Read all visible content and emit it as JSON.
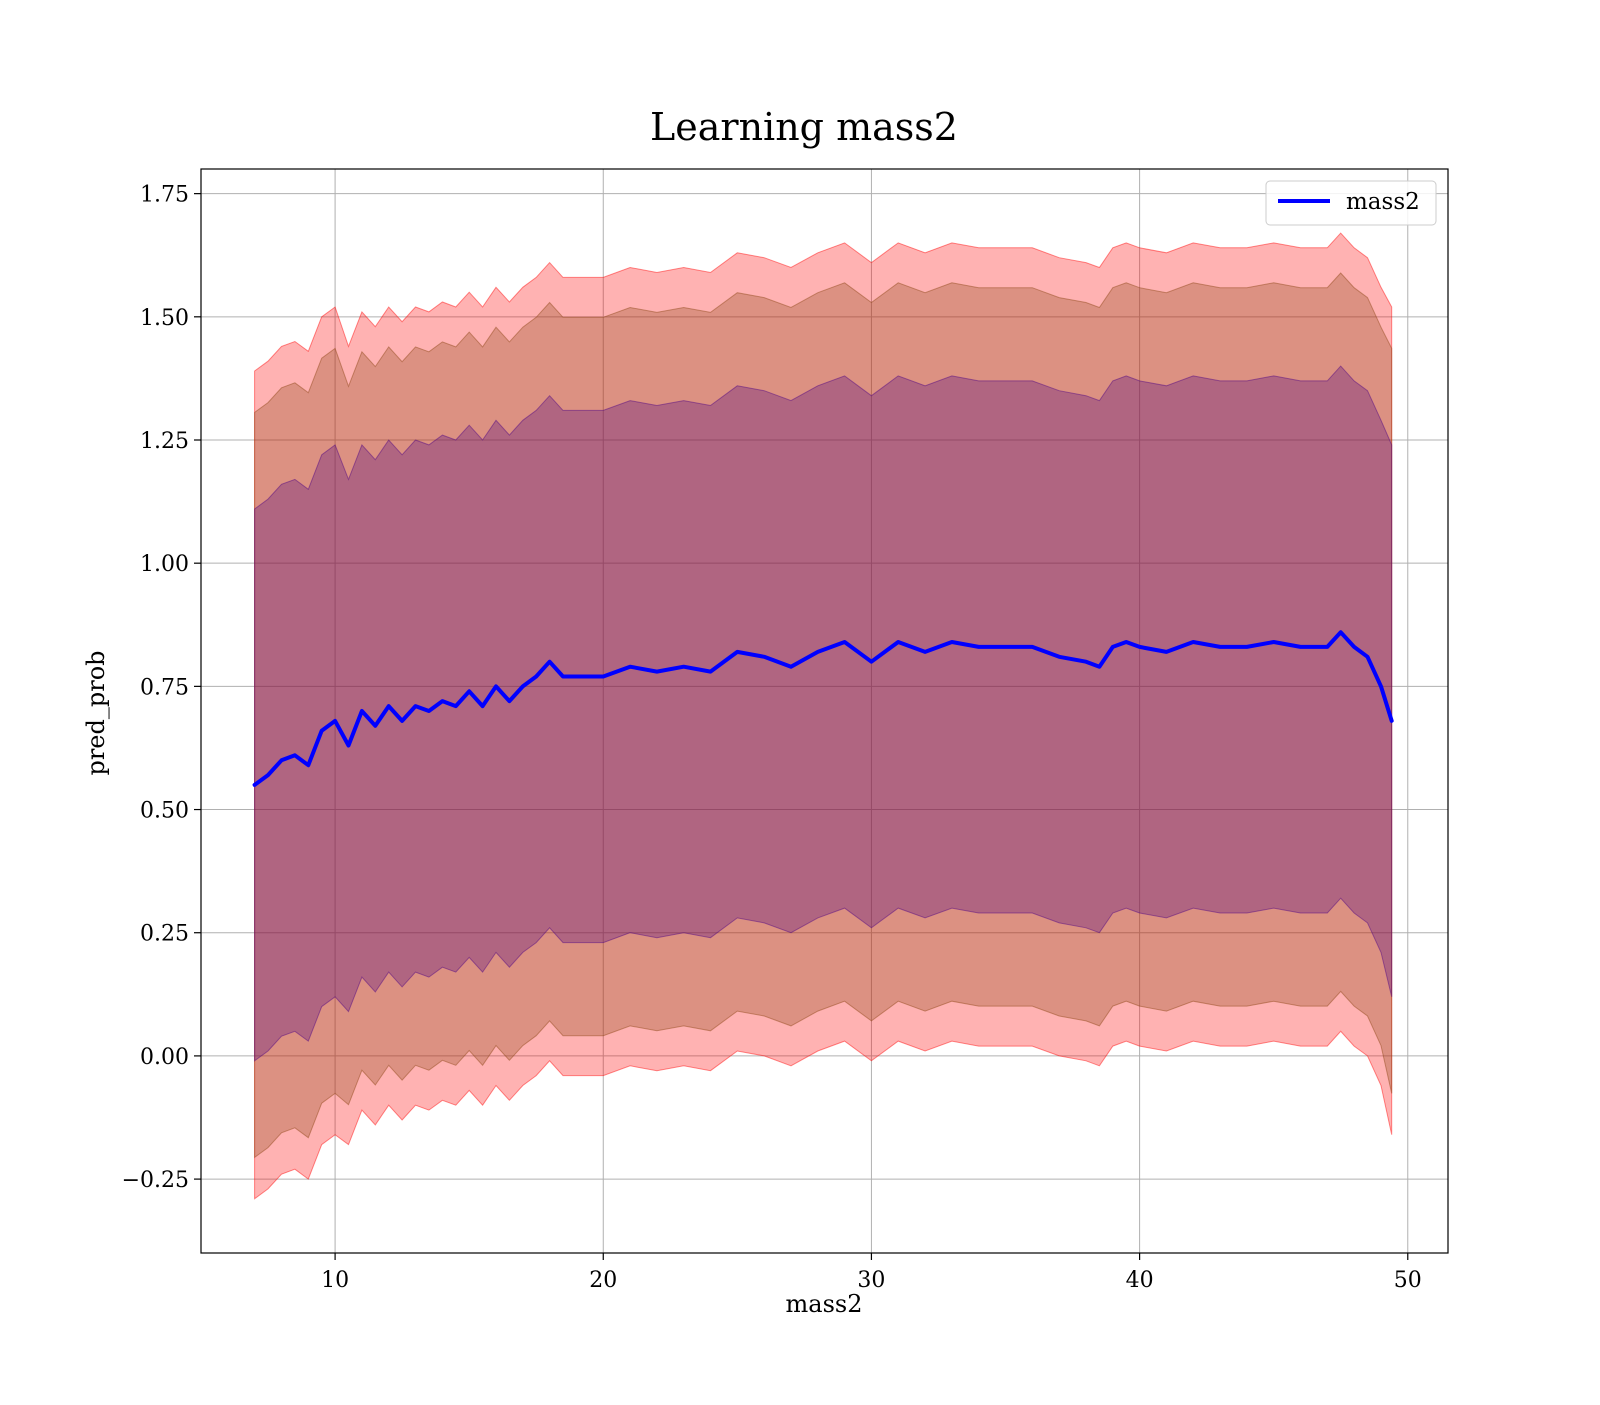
{
  "chart_data": {
    "type": "line",
    "title": "Learning mass2",
    "xlabel": "mass2",
    "ylabel": "pred_prob",
    "xlim": [
      5,
      51.5
    ],
    "ylim": [
      -0.4,
      1.8
    ],
    "xticks": [
      10,
      20,
      30,
      40,
      50
    ],
    "yticks": [
      -0.25,
      0.0,
      0.25,
      0.5,
      0.75,
      1.0,
      1.25,
      1.5,
      1.75
    ],
    "ytick_labels": [
      "−0.25",
      "0.00",
      "0.25",
      "0.50",
      "0.75",
      "1.00",
      "1.25",
      "1.50",
      "1.75"
    ],
    "grid": true,
    "legend": {
      "position": "top-right",
      "entries": [
        "mass2"
      ]
    },
    "series": [
      {
        "name": "mass2",
        "color": "#0000ff",
        "x": [
          7,
          7.5,
          8,
          8.5,
          9,
          9.5,
          10,
          10.5,
          11,
          11.5,
          12,
          12.5,
          13,
          13.5,
          14,
          14.5,
          15,
          15.5,
          16,
          16.5,
          17,
          17.5,
          18,
          18.5,
          19,
          19.5,
          20,
          21,
          22,
          23,
          24,
          25,
          26,
          27,
          28,
          29,
          30,
          31,
          32,
          33,
          34,
          35,
          36,
          37,
          38,
          38.5,
          39,
          39.5,
          40,
          41,
          42,
          43,
          44,
          45,
          46,
          47,
          47.5,
          48,
          48.5,
          49,
          49.4
        ],
        "y": [
          0.55,
          0.57,
          0.6,
          0.61,
          0.59,
          0.66,
          0.68,
          0.63,
          0.7,
          0.67,
          0.71,
          0.68,
          0.71,
          0.7,
          0.72,
          0.71,
          0.74,
          0.71,
          0.75,
          0.72,
          0.75,
          0.77,
          0.8,
          0.77,
          0.77,
          0.77,
          0.77,
          0.79,
          0.78,
          0.79,
          0.78,
          0.82,
          0.81,
          0.79,
          0.82,
          0.84,
          0.8,
          0.84,
          0.82,
          0.84,
          0.83,
          0.83,
          0.83,
          0.81,
          0.8,
          0.79,
          0.83,
          0.84,
          0.83,
          0.82,
          0.84,
          0.83,
          0.83,
          0.84,
          0.83,
          0.83,
          0.86,
          0.83,
          0.81,
          0.75,
          0.68
        ]
      }
    ],
    "bands": [
      {
        "color": "#ff0000",
        "opacity": 0.3,
        "sigma": 3
      },
      {
        "color": "#8b4513",
        "opacity": 0.3,
        "sigma": 2.7
      },
      {
        "color": "#4b0082",
        "opacity": 0.3,
        "sigma": 2
      }
    ],
    "band_halfwidth_sigma1": [
      0.28,
      0.28,
      0.28,
      0.28,
      0.28,
      0.28,
      0.28,
      0.27,
      0.27,
      0.27,
      0.27,
      0.27,
      0.27,
      0.27,
      0.27,
      0.27,
      0.27,
      0.27,
      0.27,
      0.27,
      0.27,
      0.27,
      0.27,
      0.27,
      0.27,
      0.27,
      0.27,
      0.27,
      0.27,
      0.27,
      0.27,
      0.27,
      0.27,
      0.27,
      0.27,
      0.27,
      0.27,
      0.27,
      0.27,
      0.27,
      0.27,
      0.27,
      0.27,
      0.27,
      0.27,
      0.27,
      0.27,
      0.27,
      0.27,
      0.27,
      0.27,
      0.27,
      0.27,
      0.27,
      0.27,
      0.27,
      0.27,
      0.27,
      0.27,
      0.27,
      0.28
    ]
  }
}
